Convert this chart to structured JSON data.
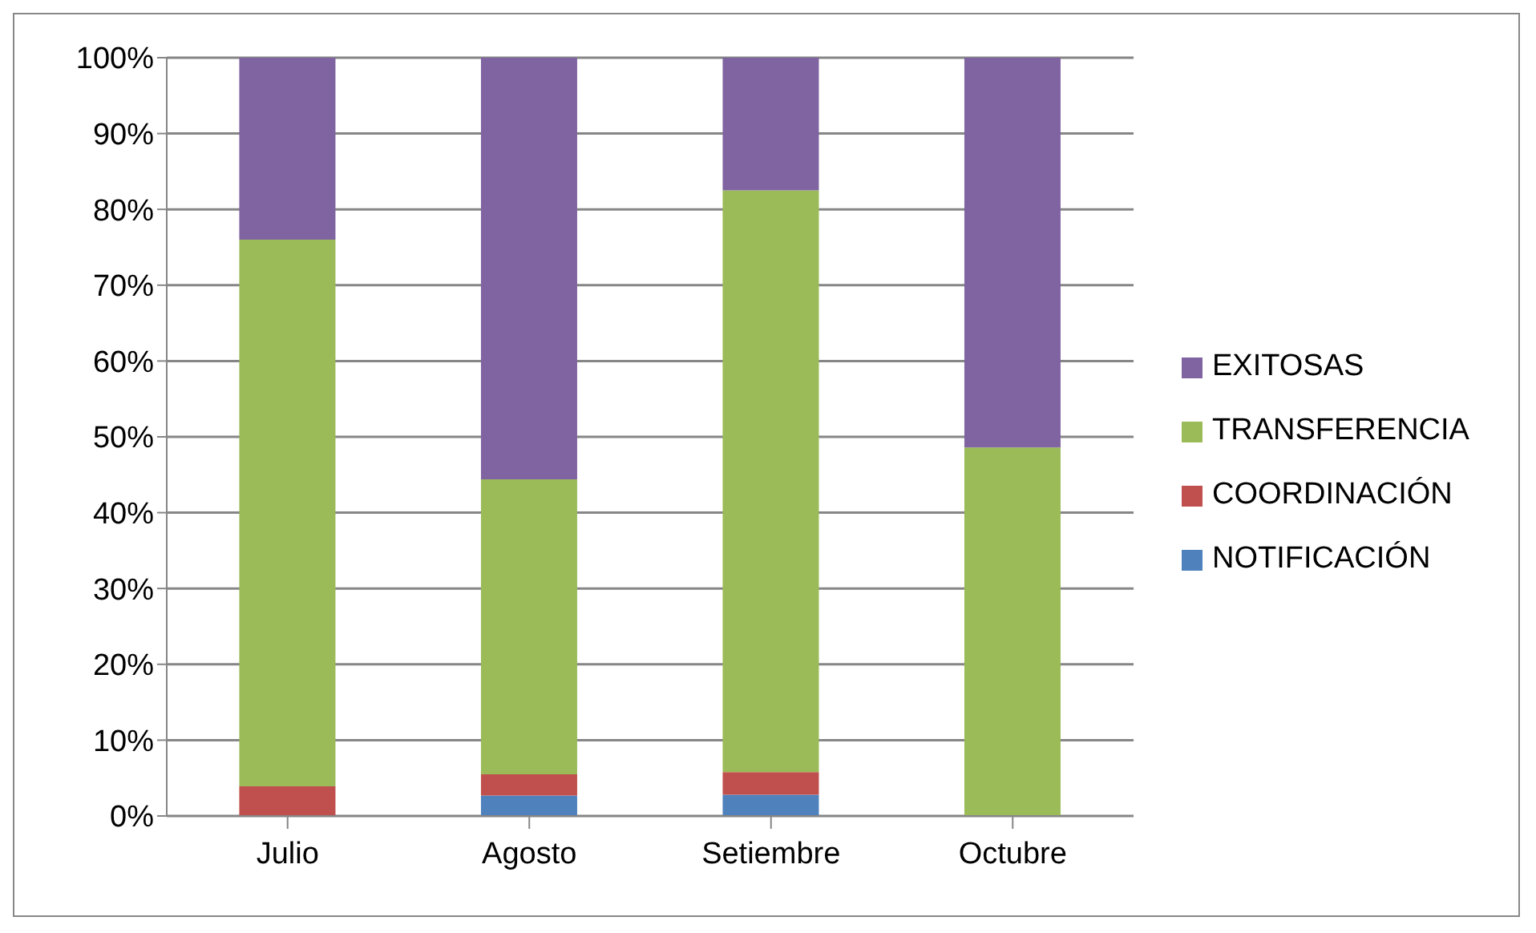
{
  "chart_data": {
    "type": "bar",
    "stacked": true,
    "categories": [
      "Julio",
      "Agosto",
      "Setiembre",
      "Octubre"
    ],
    "series": [
      {
        "name": "NOTIFICACIÓN",
        "color": "#4f81bd",
        "values": [
          0,
          2.7,
          2.8,
          0
        ]
      },
      {
        "name": "COORDINACIÓN",
        "color": "#c0504d",
        "values": [
          3.9,
          2.8,
          3.0,
          0
        ]
      },
      {
        "name": "TRANSFERENCIA",
        "color": "#9bbb59",
        "values": [
          72.1,
          38.9,
          76.7,
          48.6
        ]
      },
      {
        "name": "EXITOSAS",
        "color": "#8064a2",
        "values": [
          24.0,
          55.6,
          17.5,
          51.4
        ]
      }
    ],
    "ylim": [
      0,
      100
    ],
    "yticks": [
      {
        "value": 0,
        "label": "0%"
      },
      {
        "value": 10,
        "label": "10%"
      },
      {
        "value": 20,
        "label": "20%"
      },
      {
        "value": 30,
        "label": "30%"
      },
      {
        "value": 40,
        "label": "40%"
      },
      {
        "value": 50,
        "label": "50%"
      },
      {
        "value": 60,
        "label": "60%"
      },
      {
        "value": 70,
        "label": "70%"
      },
      {
        "value": 80,
        "label": "80%"
      },
      {
        "value": 90,
        "label": "90%"
      },
      {
        "value": 100,
        "label": "100%"
      }
    ],
    "grid": "y",
    "legend": "right"
  }
}
